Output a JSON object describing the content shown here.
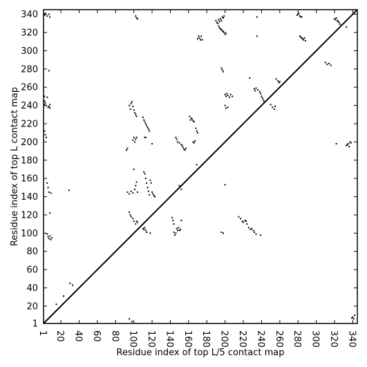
{
  "chart_data": {
    "type": "scatter",
    "title": "",
    "xlabel": "Residue index of top L/5 contact map",
    "ylabel": "Residue index of top L contact map",
    "xlim": [
      1,
      345
    ],
    "ylim": [
      1,
      345
    ],
    "x_ticks": [
      1,
      20,
      40,
      60,
      80,
      100,
      120,
      140,
      160,
      180,
      200,
      220,
      240,
      260,
      280,
      300,
      320,
      340
    ],
    "y_ticks": [
      1,
      20,
      40,
      60,
      80,
      100,
      120,
      140,
      160,
      180,
      200,
      220,
      240,
      260,
      280,
      300,
      320,
      340
    ],
    "x_tick_rotation": -90,
    "diagonal": true,
    "grid": false,
    "marker_color": "#000000",
    "series": [
      {
        "points": [
          [
            2,
            340
          ],
          [
            2,
            339
          ],
          [
            3,
            341
          ],
          [
            5,
            338
          ],
          [
            7,
            340
          ],
          [
            8,
            337
          ],
          [
            2,
            250
          ],
          [
            2,
            245
          ],
          [
            2,
            241
          ],
          [
            3,
            243
          ],
          [
            4,
            240
          ],
          [
            5,
            249
          ],
          [
            6,
            238
          ],
          [
            7,
            239
          ],
          [
            8,
            241
          ],
          [
            8,
            237
          ],
          [
            2,
            212
          ],
          [
            3,
            208
          ],
          [
            4,
            205
          ],
          [
            5,
            155
          ],
          [
            6,
            150
          ],
          [
            7,
            145
          ],
          [
            8,
            122
          ],
          [
            9,
            144
          ],
          [
            5,
            99
          ],
          [
            6,
            96
          ],
          [
            7,
            94
          ],
          [
            8,
            97
          ],
          [
            9,
            93
          ],
          [
            10,
            95
          ],
          [
            7,
            278
          ],
          [
            15,
            22
          ],
          [
            23,
            31
          ],
          [
            29,
            147
          ],
          [
            30,
            45
          ],
          [
            33,
            43
          ],
          [
            92,
            191
          ],
          [
            93,
            193
          ],
          [
            95,
            240
          ],
          [
            96,
            236
          ],
          [
            97,
            242
          ],
          [
            98,
            244
          ],
          [
            99,
            239
          ],
          [
            100,
            235
          ],
          [
            101,
            232
          ],
          [
            102,
            230
          ],
          [
            103,
            228
          ],
          [
            99,
            202
          ],
          [
            100,
            205
          ],
          [
            101,
            200
          ],
          [
            102,
            203
          ],
          [
            103,
            205
          ],
          [
            93,
            145
          ],
          [
            95,
            143
          ],
          [
            97,
            146
          ],
          [
            99,
            144
          ],
          [
            101,
            148
          ],
          [
            102,
            152
          ],
          [
            103,
            156
          ],
          [
            104,
            145
          ],
          [
            102,
            338
          ],
          [
            103,
            336
          ],
          [
            104,
            335
          ],
          [
            100,
            170
          ],
          [
            95,
            123
          ],
          [
            96,
            120
          ],
          [
            97,
            118
          ],
          [
            99,
            116
          ],
          [
            100,
            113
          ],
          [
            102,
            110
          ],
          [
            103,
            113
          ],
          [
            104,
            112
          ],
          [
            95,
            6
          ],
          [
            98,
            3
          ],
          [
            110,
            227
          ],
          [
            111,
            224
          ],
          [
            112,
            222
          ],
          [
            113,
            220
          ],
          [
            114,
            218
          ],
          [
            115,
            216
          ],
          [
            116,
            214
          ],
          [
            117,
            212
          ],
          [
            112,
            205
          ],
          [
            113,
            205
          ],
          [
            111,
            167
          ],
          [
            112,
            165
          ],
          [
            113,
            160
          ],
          [
            114,
            155
          ],
          [
            115,
            150
          ],
          [
            116,
            146
          ],
          [
            117,
            142
          ],
          [
            118,
            158
          ],
          [
            119,
            155
          ],
          [
            120,
            145
          ],
          [
            121,
            143
          ],
          [
            122,
            141
          ],
          [
            123,
            140
          ],
          [
            110,
            105
          ],
          [
            111,
            104
          ],
          [
            112,
            106
          ],
          [
            113,
            103
          ],
          [
            114,
            101
          ],
          [
            118,
            100
          ],
          [
            120,
            198
          ],
          [
            142,
            117
          ],
          [
            143,
            114
          ],
          [
            144,
            110
          ],
          [
            144,
            101
          ],
          [
            145,
            98
          ],
          [
            146,
            100
          ],
          [
            147,
            105
          ],
          [
            148,
            103
          ],
          [
            149,
            106
          ],
          [
            150,
            103
          ],
          [
            151,
            104
          ],
          [
            152,
            114
          ],
          [
            146,
            205
          ],
          [
            147,
            203
          ],
          [
            148,
            200
          ],
          [
            150,
            199
          ],
          [
            152,
            197
          ],
          [
            153,
            196
          ],
          [
            154,
            194
          ],
          [
            155,
            192
          ],
          [
            156,
            191
          ],
          [
            157,
            193
          ],
          [
            150,
            152
          ],
          [
            152,
            148
          ],
          [
            161,
            228
          ],
          [
            162,
            224
          ],
          [
            163,
            226
          ],
          [
            164,
            225
          ],
          [
            165,
            223
          ],
          [
            166,
            222
          ],
          [
            165,
            200
          ],
          [
            166,
            199
          ],
          [
            167,
            201
          ],
          [
            168,
            215
          ],
          [
            169,
            212
          ],
          [
            170,
            210
          ],
          [
            169,
            175
          ],
          [
            170,
            313
          ],
          [
            171,
            316
          ],
          [
            172,
            314
          ],
          [
            173,
            312
          ],
          [
            174,
            316
          ],
          [
            175,
            312
          ],
          [
            190,
            333
          ],
          [
            191,
            331
          ],
          [
            192,
            330
          ],
          [
            193,
            334
          ],
          [
            194,
            332
          ],
          [
            195,
            335
          ],
          [
            196,
            333
          ],
          [
            197,
            337
          ],
          [
            198,
            336
          ],
          [
            199,
            338
          ],
          [
            193,
            327
          ],
          [
            194,
            325
          ],
          [
            195,
            324
          ],
          [
            196,
            323
          ],
          [
            197,
            322
          ],
          [
            198,
            321
          ],
          [
            199,
            320
          ],
          [
            200,
            318
          ],
          [
            201,
            319
          ],
          [
            196,
            281
          ],
          [
            197,
            279
          ],
          [
            198,
            277
          ],
          [
            200,
            252
          ],
          [
            201,
            250
          ],
          [
            202,
            253
          ],
          [
            203,
            251
          ],
          [
            205,
            249
          ],
          [
            206,
            252
          ],
          [
            208,
            250
          ],
          [
            200,
            240
          ],
          [
            201,
            237
          ],
          [
            203,
            238
          ],
          [
            196,
            101
          ],
          [
            198,
            100
          ],
          [
            200,
            153
          ],
          [
            215,
            118
          ],
          [
            217,
            116
          ],
          [
            219,
            113
          ],
          [
            220,
            112
          ],
          [
            222,
            114
          ],
          [
            223,
            113
          ],
          [
            224,
            110
          ],
          [
            226,
            106
          ],
          [
            228,
            104
          ],
          [
            229,
            105
          ],
          [
            231,
            103
          ],
          [
            232,
            101
          ],
          [
            234,
            99
          ],
          [
            239,
            98
          ],
          [
            227,
            270
          ],
          [
            232,
            258
          ],
          [
            233,
            256
          ],
          [
            234,
            259
          ],
          [
            236,
            257
          ],
          [
            238,
            255
          ],
          [
            239,
            253
          ],
          [
            240,
            250
          ],
          [
            241,
            248
          ],
          [
            242,
            246
          ],
          [
            243,
            244
          ],
          [
            235,
            337
          ],
          [
            235,
            316
          ],
          [
            250,
            241
          ],
          [
            252,
            238
          ],
          [
            254,
            236
          ],
          [
            255,
            239
          ],
          [
            256,
            269
          ],
          [
            258,
            267
          ],
          [
            259,
            265
          ],
          [
            260,
            266
          ],
          [
            279,
            339
          ],
          [
            280,
            340
          ],
          [
            281,
            341
          ],
          [
            282,
            338
          ],
          [
            283,
            337
          ],
          [
            284,
            337
          ],
          [
            282,
            316
          ],
          [
            283,
            315
          ],
          [
            284,
            314
          ],
          [
            285,
            313
          ],
          [
            286,
            312
          ],
          [
            287,
            314
          ],
          [
            288,
            311
          ],
          [
            310,
            287
          ],
          [
            312,
            285
          ],
          [
            314,
            286
          ],
          [
            316,
            284
          ],
          [
            320,
            335
          ],
          [
            321,
            334
          ],
          [
            322,
            336
          ],
          [
            323,
            333
          ],
          [
            324,
            332
          ],
          [
            325,
            331
          ],
          [
            326,
            329
          ],
          [
            322,
            198
          ],
          [
            333,
            196
          ],
          [
            334,
            197
          ],
          [
            335,
            198
          ],
          [
            336,
            195
          ],
          [
            337,
            200
          ],
          [
            338,
            199
          ],
          [
            340,
            8
          ],
          [
            341,
            6
          ],
          [
            342,
            10
          ],
          [
            339,
            7
          ],
          [
            333,
            326
          ]
        ]
      }
    ]
  }
}
